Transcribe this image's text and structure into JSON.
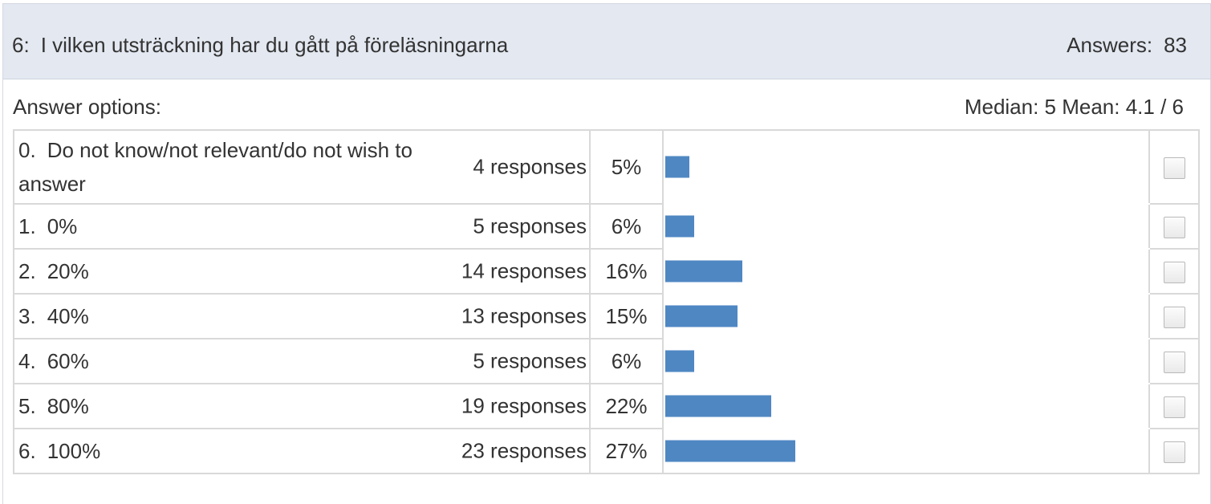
{
  "question": {
    "number": "6:",
    "title": "I vilken utsträckning har du gått på föreläsningarna",
    "answers_label": "Answers:",
    "answers_count": "83"
  },
  "options_label": "Answer options:",
  "stats": "Median: 5 Mean: 4.1 / 6",
  "colors": {
    "bar": "#4f87c3",
    "header_bg": "#e3e8f1"
  },
  "rows": [
    {
      "num": "0.",
      "label": "Do not know/not relevant/do not wish to answer",
      "responses": "4 responses",
      "percent": "5%",
      "value": 5
    },
    {
      "num": "1.",
      "label": "0%",
      "responses": "5 responses",
      "percent": "6%",
      "value": 6
    },
    {
      "num": "2.",
      "label": "20%",
      "responses": "14 responses",
      "percent": "16%",
      "value": 16
    },
    {
      "num": "3.",
      "label": "40%",
      "responses": "13 responses",
      "percent": "15%",
      "value": 15
    },
    {
      "num": "4.",
      "label": "60%",
      "responses": "5 responses",
      "percent": "6%",
      "value": 6
    },
    {
      "num": "5.",
      "label": "80%",
      "responses": "19 responses",
      "percent": "22%",
      "value": 22
    },
    {
      "num": "6.",
      "label": "100%",
      "responses": "23 responses",
      "percent": "27%",
      "value": 27
    }
  ]
}
